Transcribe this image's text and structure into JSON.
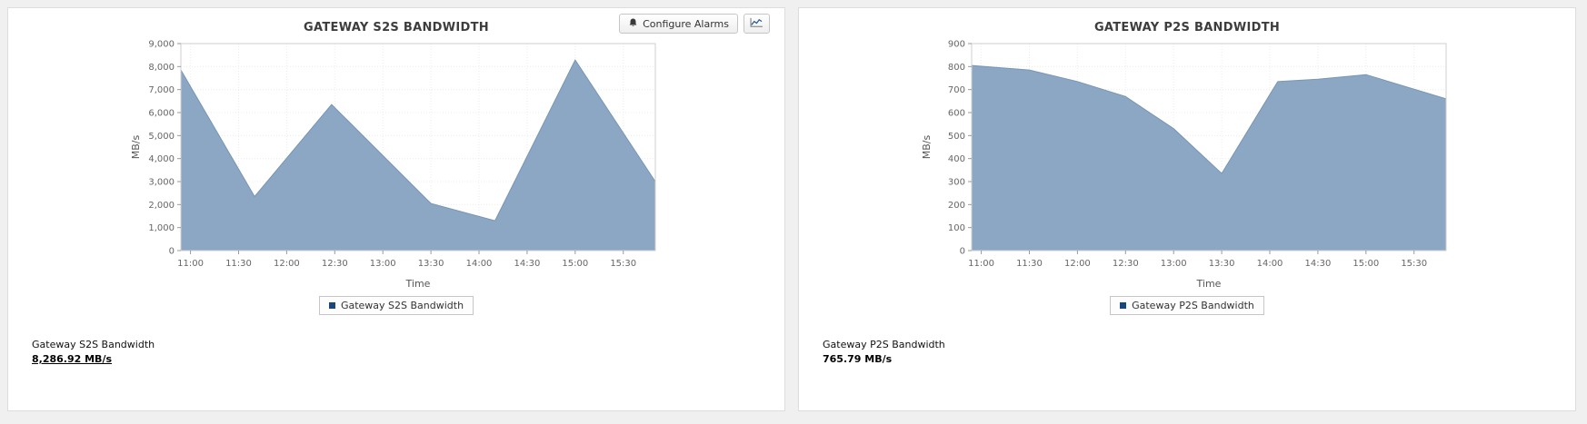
{
  "colors": {
    "page_bg": "#f0f0f1",
    "panel_bg": "#ffffff",
    "panel_border": "#dddddd",
    "area_fill": "#8ba7c4",
    "area_stroke": "#7795b5",
    "legend_marker": "#17477e"
  },
  "toolbar": {
    "configure_alarms_label": "Configure Alarms"
  },
  "panels": [
    {
      "title": "GATEWAY S2S BANDWIDTH",
      "legend": "Gateway S2S Bandwidth",
      "footer_label": "Gateway S2S Bandwidth",
      "footer_value": "8,286.92 MB/s"
    },
    {
      "title": "GATEWAY P2S BANDWIDTH",
      "legend": "Gateway P2S Bandwidth",
      "footer_label": "Gateway P2S Bandwidth",
      "footer_value": "765.79 MB/s"
    }
  ],
  "chart_data": [
    {
      "type": "area",
      "title": "GATEWAY S2S BANDWIDTH",
      "xlabel": "Time",
      "ylabel": "MB/s",
      "ylim": [
        0,
        9000
      ],
      "ytick_step": 1000,
      "xlim": [
        -6,
        290
      ],
      "x_unit": "minutes since 11:00",
      "x_ticks": [
        "11:00",
        "11:30",
        "12:00",
        "12:30",
        "13:00",
        "13:30",
        "14:00",
        "14:30",
        "15:00",
        "15:30"
      ],
      "x_tick_minutes": [
        0,
        30,
        60,
        90,
        120,
        150,
        180,
        210,
        240,
        270
      ],
      "grid": true,
      "legend_position": "bottom",
      "fill": "#8ba7c4",
      "stroke": "#7795b5",
      "marker_color": "#17477e",
      "series": [
        {
          "name": "Gateway S2S Bandwidth",
          "points": [
            {
              "x": -6,
              "y": 7850
            },
            {
              "x": 40,
              "y": 2350
            },
            {
              "x": 88,
              "y": 6350
            },
            {
              "x": 150,
              "y": 2050
            },
            {
              "x": 190,
              "y": 1300
            },
            {
              "x": 240,
              "y": 8287
            },
            {
              "x": 290,
              "y": 3000
            }
          ]
        }
      ]
    },
    {
      "type": "area",
      "title": "GATEWAY P2S BANDWIDTH",
      "xlabel": "Time",
      "ylabel": "MB/s",
      "ylim": [
        0,
        900
      ],
      "ytick_step": 100,
      "xlim": [
        -6,
        290
      ],
      "x_unit": "minutes since 11:00",
      "x_ticks": [
        "11:00",
        "11:30",
        "12:00",
        "12:30",
        "13:00",
        "13:30",
        "14:00",
        "14:30",
        "15:00",
        "15:30"
      ],
      "x_tick_minutes": [
        0,
        30,
        60,
        90,
        120,
        150,
        180,
        210,
        240,
        270
      ],
      "grid": true,
      "legend_position": "bottom",
      "fill": "#8ba7c4",
      "stroke": "#7795b5",
      "marker_color": "#17477e",
      "series": [
        {
          "name": "Gateway P2S Bandwidth",
          "points": [
            {
              "x": -6,
              "y": 805
            },
            {
              "x": 30,
              "y": 785
            },
            {
              "x": 60,
              "y": 735
            },
            {
              "x": 90,
              "y": 670
            },
            {
              "x": 120,
              "y": 530
            },
            {
              "x": 150,
              "y": 335
            },
            {
              "x": 185,
              "y": 735
            },
            {
              "x": 210,
              "y": 745
            },
            {
              "x": 240,
              "y": 765
            },
            {
              "x": 290,
              "y": 660
            }
          ]
        }
      ]
    }
  ]
}
